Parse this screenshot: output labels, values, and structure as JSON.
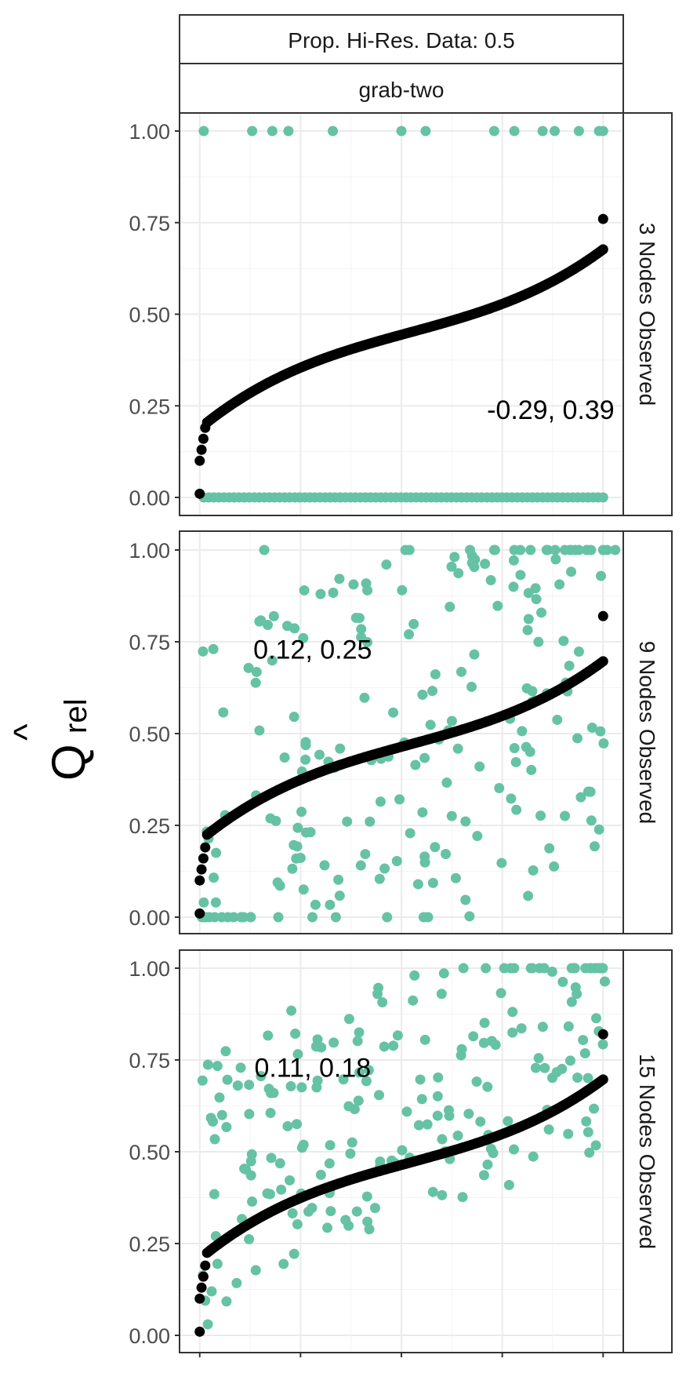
{
  "chart_data": {
    "type": "scatter",
    "title": "",
    "xlabel": "",
    "ylabel": {
      "main": "Q",
      "hat": "^",
      "sub": "rel"
    },
    "strips": {
      "top": "Prop. Hi-Res. Data: 0.5",
      "second": "grab-two"
    },
    "ylim": [
      0,
      1
    ],
    "y_ticks": [
      "0.00",
      "0.25",
      "0.50",
      "0.75",
      "1.00"
    ],
    "grid": true,
    "colors": {
      "sorted": "#000000",
      "observed": "#66c2a5",
      "strip_bg": "#ffffff",
      "grid": "#ebebeb",
      "border": "#333333"
    },
    "panels": [
      {
        "facet": "3 Nodes Observed",
        "annotation": "-0.29, 0.39",
        "observed_ones_x": [
          0.01,
          0.13,
          0.18,
          0.22,
          0.33,
          0.5,
          0.56,
          0.73,
          0.78,
          0.85,
          0.88,
          0.94,
          0.99,
          1.0
        ]
      },
      {
        "facet": "9 Nodes Observed",
        "annotation": "0.12, 0.25",
        "observed_ones_x": [
          0.16,
          0.51,
          0.52,
          0.67,
          0.73,
          0.78,
          0.82,
          0.86,
          0.92,
          0.94,
          0.96,
          0.97,
          1.0,
          1.01,
          1.03
        ]
      },
      {
        "facet": "15 Nodes Observed",
        "annotation": "0.11, 0.18",
        "observed_ones_x": [
          0.93,
          0.98
        ]
      }
    ]
  }
}
